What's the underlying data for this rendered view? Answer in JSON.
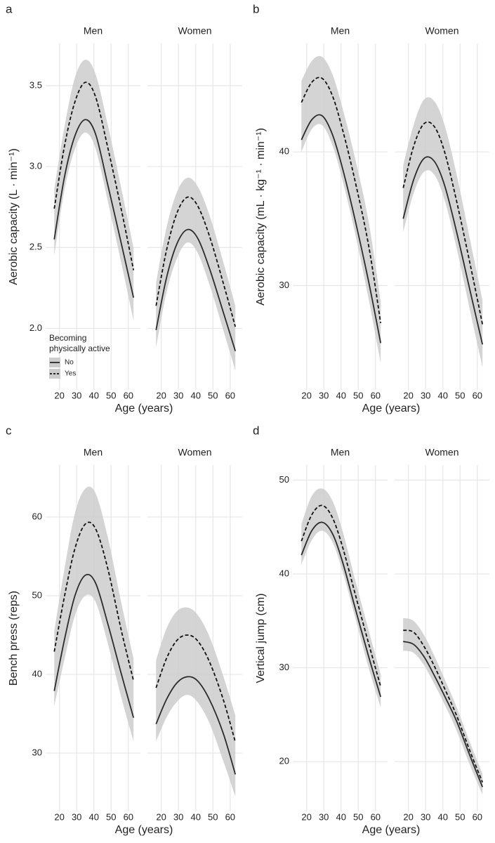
{
  "chart_data": [
    {
      "type": "line",
      "label": "a",
      "ylabel": "Aerobic capacity (L · min⁻¹)",
      "xlabel": "Age (years)",
      "xlim": [
        12,
        67
      ],
      "xticks": [
        20,
        30,
        40,
        50,
        60
      ],
      "ylim": [
        1.62,
        3.76
      ],
      "yticks": [
        {
          "value": 2,
          "label": "2.0"
        },
        {
          "value": 2.5,
          "label": "2.5"
        },
        {
          "value": 3,
          "label": "3.0"
        },
        {
          "value": 3.5,
          "label": "3.5"
        }
      ],
      "grid": true,
      "band_color": "#cccccc",
      "legend": {
        "title": [
          "Becoming",
          "physically active"
        ],
        "position": "bottom-left"
      },
      "x": [
        17,
        23,
        29,
        35,
        41,
        48,
        56,
        63
      ],
      "facets": [
        {
          "title": "Men",
          "band_lower": [
            2.45,
            2.86,
            3.11,
            3.21,
            3.11,
            2.79,
            2.4,
            2.05
          ],
          "band_upper": [
            2.86,
            3.25,
            3.55,
            3.66,
            3.57,
            3.26,
            2.86,
            2.5
          ],
          "series": [
            {
              "name": "No",
              "color": "#2b2b2b",
              "line_style": "solid",
              "values": [
                2.55,
                2.94,
                3.19,
                3.29,
                3.2,
                2.89,
                2.52,
                2.19
              ]
            },
            {
              "name": "Yes",
              "color": "#111111",
              "line_style": "dashed",
              "values": [
                2.74,
                3.13,
                3.4,
                3.52,
                3.43,
                3.12,
                2.73,
                2.36
              ]
            }
          ]
        },
        {
          "title": "Women",
          "band_lower": [
            1.88,
            2.22,
            2.43,
            2.53,
            2.47,
            2.27,
            1.99,
            1.74
          ],
          "band_upper": [
            2.28,
            2.62,
            2.84,
            2.93,
            2.88,
            2.7,
            2.41,
            2.14
          ],
          "series": [
            {
              "name": "No",
              "color": "#2b2b2b",
              "line_style": "solid",
              "values": [
                1.99,
                2.31,
                2.52,
                2.61,
                2.56,
                2.37,
                2.1,
                1.86
              ]
            },
            {
              "name": "Yes",
              "color": "#111111",
              "line_style": "dashed",
              "values": [
                2.14,
                2.48,
                2.71,
                2.81,
                2.76,
                2.57,
                2.28,
                2.01
              ]
            }
          ]
        }
      ]
    },
    {
      "type": "line",
      "label": "b",
      "ylabel": "Aerobic capacity (mL · kg⁻¹ · min⁻¹)",
      "xlabel": "Age (years)",
      "xlim": [
        12,
        67
      ],
      "xticks": [
        20,
        30,
        40,
        50,
        60
      ],
      "ylim": [
        22.2,
        48.1
      ],
      "yticks": [
        30,
        40
      ],
      "grid": true,
      "band_color": "#cccccc",
      "x": [
        17,
        23,
        29,
        35,
        41,
        48,
        56,
        63
      ],
      "facets": [
        {
          "title": "Men",
          "band_lower": [
            40.0,
            41.7,
            42.0,
            40.5,
            37.8,
            34.0,
            29.0,
            24.2
          ],
          "band_upper": [
            45.3,
            46.8,
            47.1,
            45.8,
            43.2,
            39.6,
            34.8,
            28.8
          ],
          "series": [
            {
              "name": "No",
              "color": "#2b2b2b",
              "line_style": "solid",
              "values": [
                40.9,
                42.4,
                42.7,
                41.3,
                38.7,
                35.0,
                30.3,
                25.7
              ]
            },
            {
              "name": "Yes",
              "color": "#111111",
              "line_style": "dashed",
              "values": [
                43.7,
                45.2,
                45.5,
                44.2,
                41.6,
                37.9,
                33.0,
                27.2
              ]
            }
          ]
        },
        {
          "title": "Women",
          "band_lower": [
            34.0,
            36.9,
            38.5,
            38.3,
            36.4,
            32.8,
            28.0,
            23.9
          ],
          "band_upper": [
            39.0,
            42.0,
            43.9,
            43.8,
            42.0,
            38.3,
            33.3,
            28.9
          ],
          "series": [
            {
              "name": "No",
              "color": "#2b2b2b",
              "line_style": "solid",
              "values": [
                35.0,
                37.9,
                39.5,
                39.3,
                37.5,
                34.0,
                29.5,
                25.6
              ]
            },
            {
              "name": "Yes",
              "color": "#111111",
              "line_style": "dashed",
              "values": [
                37.3,
                40.4,
                42.1,
                41.9,
                40.0,
                36.3,
                31.5,
                27.1
              ]
            }
          ]
        }
      ]
    },
    {
      "type": "line",
      "label": "c",
      "ylabel": "Bench press (reps)",
      "xlabel": "Age (years)",
      "xlim": [
        12,
        67
      ],
      "xticks": [
        20,
        30,
        40,
        50,
        60
      ],
      "ylim": [
        22.6,
        66.6
      ],
      "yticks": [
        30,
        40,
        50,
        60
      ],
      "grid": true,
      "band_color": "#cccccc",
      "x": [
        17,
        23,
        29,
        35,
        41,
        48,
        56,
        63
      ],
      "facets": [
        {
          "title": "Men",
          "band_lower": [
            36.0,
            42.0,
            47.5,
            50.0,
            49.2,
            44.0,
            37.0,
            31.5
          ],
          "band_upper": [
            45.5,
            53.5,
            60.5,
            63.6,
            63.0,
            57.5,
            49.0,
            42.0
          ],
          "series": [
            {
              "name": "No",
              "color": "#2b2b2b",
              "line_style": "solid",
              "values": [
                37.9,
                44.5,
                50.0,
                52.6,
                51.6,
                46.5,
                40.0,
                34.5
              ]
            },
            {
              "name": "Yes",
              "color": "#111111",
              "line_style": "dashed",
              "values": [
                42.9,
                50.0,
                56.0,
                59.1,
                58.5,
                53.5,
                45.5,
                39.2
              ]
            }
          ]
        },
        {
          "title": "Women",
          "band_lower": [
            31.5,
            34.5,
            36.5,
            37.4,
            36.5,
            33.8,
            29.0,
            24.5
          ],
          "band_upper": [
            41.8,
            45.8,
            48.0,
            48.5,
            47.6,
            44.8,
            39.8,
            34.8
          ],
          "series": [
            {
              "name": "No",
              "color": "#2b2b2b",
              "line_style": "solid",
              "values": [
                33.7,
                36.8,
                38.9,
                39.7,
                39.2,
                36.8,
                32.5,
                27.3
              ]
            },
            {
              "name": "Yes",
              "color": "#111111",
              "line_style": "dashed",
              "values": [
                38.3,
                42.0,
                44.3,
                45.0,
                44.3,
                41.6,
                36.8,
                31.4
              ]
            }
          ]
        }
      ]
    },
    {
      "type": "line",
      "label": "d",
      "ylabel": "Vertical jump (cm)",
      "xlabel": "Age (years)",
      "xlim": [
        12,
        67
      ],
      "xticks": [
        20,
        30,
        40,
        50,
        60
      ],
      "ylim": [
        14.7,
        51.6
      ],
      "yticks": [
        20,
        30,
        40,
        50
      ],
      "grid": true,
      "band_color": "#cccccc",
      "x": [
        17,
        23,
        29,
        35,
        41,
        48,
        56,
        63
      ],
      "facets": [
        {
          "title": "Men",
          "band_lower": [
            41.0,
            43.6,
            44.6,
            43.4,
            40.2,
            35.5,
            30.0,
            25.8
          ],
          "band_upper": [
            45.3,
            48.3,
            49.1,
            47.8,
            44.5,
            39.5,
            34.0,
            29.3
          ],
          "series": [
            {
              "name": "No",
              "color": "#2b2b2b",
              "line_style": "solid",
              "values": [
                42.0,
                44.6,
                45.5,
                44.3,
                41.2,
                36.5,
                31.2,
                26.9
              ]
            },
            {
              "name": "Yes",
              "color": "#111111",
              "line_style": "dashed",
              "values": [
                43.5,
                46.3,
                47.3,
                46.0,
                42.8,
                38.0,
                32.6,
                28.0
              ]
            }
          ]
        },
        {
          "title": "Women",
          "band_lower": [
            31.8,
            31.6,
            30.3,
            28.3,
            26.1,
            23.3,
            19.5,
            16.5
          ],
          "band_upper": [
            35.3,
            35.0,
            33.5,
            31.3,
            28.8,
            25.8,
            21.9,
            18.7
          ],
          "series": [
            {
              "name": "No",
              "color": "#2b2b2b",
              "line_style": "solid",
              "values": [
                32.8,
                32.5,
                31.2,
                29.2,
                27.0,
                24.3,
                20.5,
                17.3
              ]
            },
            {
              "name": "Yes",
              "color": "#111111",
              "line_style": "dashed",
              "values": [
                34.0,
                33.8,
                32.3,
                30.2,
                27.8,
                24.9,
                21.0,
                17.8
              ]
            }
          ]
        }
      ]
    }
  ]
}
